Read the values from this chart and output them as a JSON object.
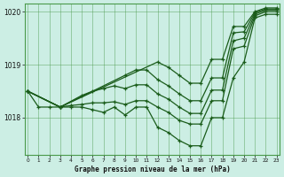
{
  "title": "Graphe pression niveau de la mer (hPa)",
  "background_color": "#cceee4",
  "grid_color": "#4a9a4a",
  "line_color": "#1a5c1a",
  "x_ticks": [
    0,
    1,
    2,
    3,
    4,
    5,
    6,
    7,
    8,
    9,
    10,
    11,
    12,
    13,
    14,
    15,
    16,
    17,
    18,
    19,
    20,
    21,
    22,
    23
  ],
  "y_ticks": [
    1018,
    1019,
    1020
  ],
  "ylim": [
    1017.3,
    1020.15
  ],
  "xlim": [
    -0.3,
    23.3
  ],
  "lines": [
    {
      "x": [
        0,
        1,
        2,
        3,
        4,
        5,
        6,
        7,
        8,
        9,
        10,
        11,
        12,
        13,
        14,
        15,
        16,
        17,
        18,
        19,
        20,
        21,
        22,
        23
      ],
      "y": [
        1018.5,
        1018.2,
        1018.2,
        1018.2,
        1018.2,
        1018.2,
        1018.15,
        1018.1,
        1018.2,
        1018.05,
        1018.2,
        1018.2,
        1017.82,
        1017.72,
        1017.57,
        1017.47,
        1017.47,
        1018.0,
        1018.0,
        1018.75,
        1019.05,
        1019.88,
        1019.95,
        1019.95
      ]
    },
    {
      "x": [
        0,
        3,
        4,
        5,
        6,
        7,
        8,
        9,
        10,
        11,
        12,
        13,
        14,
        15,
        16,
        17,
        18,
        19,
        20,
        21,
        22,
        23
      ],
      "y": [
        1018.5,
        1018.2,
        1018.23,
        1018.25,
        1018.28,
        1018.28,
        1018.3,
        1018.25,
        1018.32,
        1018.32,
        1018.2,
        1018.1,
        1017.95,
        1017.88,
        1017.88,
        1018.32,
        1018.32,
        1019.3,
        1019.35,
        1019.92,
        1020.0,
        1020.0
      ]
    },
    {
      "x": [
        0,
        3,
        5,
        6,
        7,
        8,
        9,
        10,
        11,
        12,
        13,
        14,
        15,
        16,
        17,
        18,
        19,
        20,
        21,
        22,
        23
      ],
      "y": [
        1018.5,
        1018.2,
        1018.42,
        1018.5,
        1018.55,
        1018.6,
        1018.55,
        1018.62,
        1018.62,
        1018.45,
        1018.35,
        1018.2,
        1018.08,
        1018.08,
        1018.52,
        1018.52,
        1019.45,
        1019.5,
        1019.95,
        1020.03,
        1020.03
      ]
    },
    {
      "x": [
        0,
        3,
        9,
        10,
        11,
        12,
        13,
        14,
        15,
        16,
        17,
        18,
        19,
        20,
        21,
        22,
        23
      ],
      "y": [
        1018.5,
        1018.2,
        1018.8,
        1018.9,
        1018.9,
        1018.72,
        1018.6,
        1018.45,
        1018.32,
        1018.32,
        1018.75,
        1018.75,
        1019.6,
        1019.62,
        1019.98,
        1020.05,
        1020.05
      ]
    },
    {
      "x": [
        0,
        3,
        12,
        13,
        14,
        15,
        16,
        17,
        18,
        19,
        20,
        21,
        22,
        23
      ],
      "y": [
        1018.5,
        1018.2,
        1019.05,
        1018.95,
        1018.8,
        1018.65,
        1018.65,
        1019.1,
        1019.1,
        1019.72,
        1019.72,
        1020.0,
        1020.07,
        1020.07
      ]
    }
  ]
}
